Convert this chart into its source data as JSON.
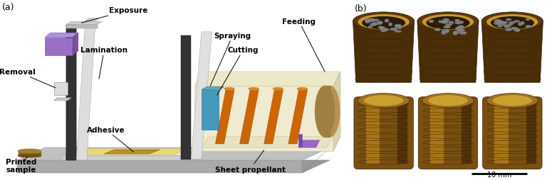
{
  "panel_a_label": "(a)",
  "panel_b_label": "(b)",
  "labels": {
    "exposure": "Exposure",
    "removal": "Removal",
    "lamination": "Lamination",
    "adhesive": "Adhesive",
    "printed_sample": "Printed\nsample",
    "spraying": "Spraying",
    "cutting": "Cutting",
    "feeding": "Feeding",
    "sheet_propellant": "Sheet propellant"
  },
  "scale_bar_text": "10 mm",
  "bg_color": "#ffffff",
  "figure_width": 7.68,
  "figure_height": 2.55,
  "dpi": 100
}
